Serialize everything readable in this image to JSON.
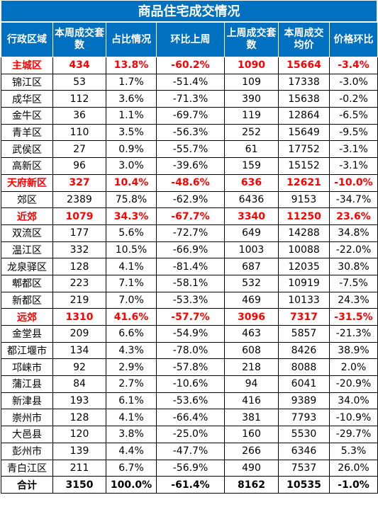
{
  "title": "商品住宅成交情况",
  "headers": [
    "行政区域",
    "本周成交套数",
    "占比情况",
    "环比上周",
    "上周成交套数",
    "本周成交均价",
    "价格环比"
  ],
  "rows": [
    {
      "name": "主城区",
      "cur": "434",
      "share": "13.8%",
      "wow": "-60.2%",
      "prev": "1090",
      "price": "15664",
      "price_chg": "-3.4%",
      "highlight": true
    },
    {
      "name": "锦江区",
      "cur": "53",
      "share": "1.7%",
      "wow": "-51.4%",
      "prev": "109",
      "price": "17338",
      "price_chg": "-3.0%"
    },
    {
      "name": "成华区",
      "cur": "112",
      "share": "3.6%",
      "wow": "-71.3%",
      "prev": "390",
      "price": "15638",
      "price_chg": "-0.2%"
    },
    {
      "name": "金牛区",
      "cur": "36",
      "share": "1.1%",
      "wow": "-69.7%",
      "prev": "119",
      "price": "12864",
      "price_chg": "-6.5%"
    },
    {
      "name": "青羊区",
      "cur": "110",
      "share": "3.5%",
      "wow": "-56.3%",
      "prev": "252",
      "price": "15649",
      "price_chg": "-9.5%"
    },
    {
      "name": "武侯区",
      "cur": "27",
      "share": "0.9%",
      "wow": "-55.7%",
      "prev": "61",
      "price": "17752",
      "price_chg": "-3.1%"
    },
    {
      "name": "高新区",
      "cur": "96",
      "share": "3.0%",
      "wow": "-39.6%",
      "prev": "159",
      "price": "15152",
      "price_chg": "-3.1%"
    },
    {
      "name": "天府新区",
      "cur": "327",
      "share": "10.4%",
      "wow": "-48.6%",
      "prev": "636",
      "price": "12621",
      "price_chg": "-10.0%",
      "highlight": true
    },
    {
      "name": "郊区",
      "cur": "2389",
      "share": "75.8%",
      "wow": "-62.9%",
      "prev": "6436",
      "price": "9153",
      "price_chg": "-34.7%"
    },
    {
      "name": "近郊",
      "cur": "1079",
      "share": "34.3%",
      "wow": "-67.7%",
      "prev": "3340",
      "price": "11250",
      "price_chg": "23.6%",
      "highlight": true
    },
    {
      "name": "双流区",
      "cur": "177",
      "share": "5.6%",
      "wow": "-72.7%",
      "prev": "649",
      "price": "14288",
      "price_chg": "34.8%"
    },
    {
      "name": "温江区",
      "cur": "332",
      "share": "10.5%",
      "wow": "-66.9%",
      "prev": "1003",
      "price": "10088",
      "price_chg": "-22.0%"
    },
    {
      "name": "龙泉驿区",
      "cur": "128",
      "share": "4.1%",
      "wow": "-81.4%",
      "prev": "687",
      "price": "12035",
      "price_chg": "30.8%"
    },
    {
      "name": "郫都区",
      "cur": "223",
      "share": "7.1%",
      "wow": "-58.1%",
      "prev": "532",
      "price": "10919",
      "price_chg": "-7.5%"
    },
    {
      "name": "新都区",
      "cur": "219",
      "share": "7.0%",
      "wow": "-53.3%",
      "prev": "469",
      "price": "10133",
      "price_chg": "24.3%"
    },
    {
      "name": "远郊",
      "cur": "1310",
      "share": "41.6%",
      "wow": "-57.7%",
      "prev": "3096",
      "price": "7317",
      "price_chg": "-31.5%",
      "highlight": true
    },
    {
      "name": "金堂县",
      "cur": "209",
      "share": "6.6%",
      "wow": "-54.9%",
      "prev": "463",
      "price": "5857",
      "price_chg": "-21.3%"
    },
    {
      "name": "都江堰市",
      "cur": "134",
      "share": "4.3%",
      "wow": "-78.0%",
      "prev": "608",
      "price": "8426",
      "price_chg": "38.9%"
    },
    {
      "name": "邛崃市",
      "cur": "92",
      "share": "2.9%",
      "wow": "-57.8%",
      "prev": "218",
      "price": "8088",
      "price_chg": "2.0%"
    },
    {
      "name": "蒲江县",
      "cur": "84",
      "share": "2.7%",
      "wow": "-10.6%",
      "prev": "94",
      "price": "6041",
      "price_chg": "-20.9%"
    },
    {
      "name": "新津县",
      "cur": "193",
      "share": "6.1%",
      "wow": "-53.6%",
      "prev": "416",
      "price": "9389",
      "price_chg": "34.0%"
    },
    {
      "name": "崇州市",
      "cur": "128",
      "share": "4.1%",
      "wow": "-66.4%",
      "prev": "381",
      "price": "7793",
      "price_chg": "-10.9%"
    },
    {
      "name": "大邑县",
      "cur": "120",
      "share": "3.8%",
      "wow": "-25.0%",
      "prev": "160",
      "price": "5530",
      "price_chg": "-29.7%"
    },
    {
      "name": "彭州市",
      "cur": "139",
      "share": "4.4%",
      "wow": "-47.7%",
      "prev": "266",
      "price": "6346",
      "price_chg": "5.3%"
    },
    {
      "name": "青白江区",
      "cur": "211",
      "share": "6.7%",
      "wow": "-56.9%",
      "prev": "490",
      "price": "7537",
      "price_chg": "26.0%"
    }
  ],
  "total": {
    "name": "合计",
    "cur": "3150",
    "share": "100.0%",
    "wow": "-61.4%",
    "prev": "8162",
    "price": "10535",
    "price_chg": "-1.0%"
  },
  "colors": {
    "header_bg": "#0070c0",
    "header_text": "#ffffff",
    "highlight_text": "#ff0000"
  }
}
